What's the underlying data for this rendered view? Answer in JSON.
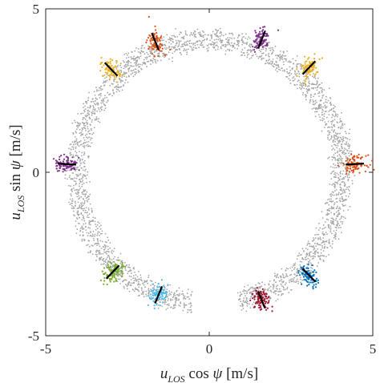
{
  "chart_data": {
    "type": "scatter",
    "title": "",
    "xlim": [
      -5,
      5
    ],
    "ylim": [
      -5,
      5
    ],
    "x_ticks": [
      "-5",
      "0",
      "5"
    ],
    "y_ticks": [
      "-5",
      "0",
      "5"
    ],
    "xlabel": {
      "var": "u",
      "sub": "LOS",
      "rest": " cos ",
      "sym": "ψ",
      "unit": " [m/s]"
    },
    "ylabel": {
      "var": "u",
      "sub": "LOS",
      "rest": " sin ",
      "sym": "ψ",
      "unit": " [m/s]"
    },
    "grid": false,
    "legend": "none",
    "background_series": {
      "color": "#a6a6a6",
      "ring_radius_outer": 4.35,
      "ring_radius_inner": 3.75,
      "gap_start_angle_deg": -97,
      "gap_end_angle_deg": -77,
      "approx_points": 3000
    },
    "clusters": [
      {
        "x": 4.45,
        "y": 0.25,
        "color": "#d95319"
      },
      {
        "x": 3.05,
        "y": 3.2,
        "color": "#edb120"
      },
      {
        "x": 1.6,
        "y": 4.05,
        "color": "#7e2f8e"
      },
      {
        "x": -1.65,
        "y": 4.0,
        "color": "#d95319"
      },
      {
        "x": -3.0,
        "y": 3.15,
        "color": "#edb120"
      },
      {
        "x": -4.35,
        "y": 0.25,
        "color": "#7e2f8e"
      },
      {
        "x": -2.95,
        "y": -3.05,
        "color": "#77ac30"
      },
      {
        "x": -1.55,
        "y": -3.75,
        "color": "#4dbeee"
      },
      {
        "x": 1.6,
        "y": -3.9,
        "color": "#a2142f"
      },
      {
        "x": 3.05,
        "y": -3.15,
        "color": "#0072bd"
      }
    ]
  }
}
